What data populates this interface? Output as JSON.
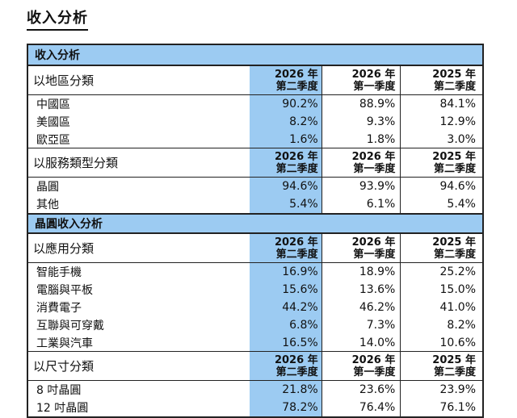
{
  "title": "收入分析",
  "section1": {
    "title": "收入分析",
    "groups": [
      {
        "label": "以地區分類",
        "headers": [
          {
            "year": "2026 年",
            "quarter": "第二季度"
          },
          {
            "year": "2026 年",
            "quarter": "第一季度"
          },
          {
            "year": "2025 年",
            "quarter": "第二季度"
          }
        ],
        "rows": [
          {
            "label": "中國區",
            "v1": "90.2%",
            "v2": "88.9%",
            "v3": "84.1%"
          },
          {
            "label": "美國區",
            "v1": "8.2%",
            "v2": "9.3%",
            "v3": "12.9%"
          },
          {
            "label": "歐亞區",
            "v1": "1.6%",
            "v2": "1.8%",
            "v3": "3.0%"
          }
        ]
      },
      {
        "label": "以服務類型分類",
        "headers": [
          {
            "year": "2026 年",
            "quarter": "第二季度"
          },
          {
            "year": "2026 年",
            "quarter": "第一季度"
          },
          {
            "year": "2025 年",
            "quarter": "第二季度"
          }
        ],
        "rows": [
          {
            "label": "晶圓",
            "v1": "94.6%",
            "v2": "93.9%",
            "v3": "94.6%"
          },
          {
            "label": "其他",
            "v1": "5.4%",
            "v2": "6.1%",
            "v3": "5.4%"
          }
        ]
      }
    ]
  },
  "section2": {
    "title": "晶圓收入分析",
    "groups": [
      {
        "label": "以應用分類",
        "headers": [
          {
            "year": "2026 年",
            "quarter": "第二季度"
          },
          {
            "year": "2026 年",
            "quarter": "第一季度"
          },
          {
            "year": "2025 年",
            "quarter": "第二季度"
          }
        ],
        "rows": [
          {
            "label": "智能手機",
            "v1": "16.9%",
            "v2": "18.9%",
            "v3": "25.2%"
          },
          {
            "label": "電腦與平板",
            "v1": "15.6%",
            "v2": "13.6%",
            "v3": "15.0%"
          },
          {
            "label": "消費電子",
            "v1": "44.2%",
            "v2": "46.2%",
            "v3": "41.0%"
          },
          {
            "label": "互聯與可穿戴",
            "v1": "6.8%",
            "v2": "7.3%",
            "v3": "8.2%"
          },
          {
            "label": "工業與汽車",
            "v1": "16.5%",
            "v2": "14.0%",
            "v3": "10.6%"
          }
        ]
      },
      {
        "label": "以尺寸分類",
        "headers": [
          {
            "year": "2026 年",
            "quarter": "第二季度"
          },
          {
            "year": "2026 年",
            "quarter": "第一季度"
          },
          {
            "year": "2025 年",
            "quarter": "第二季度"
          }
        ],
        "rows": [
          {
            "label": "8 吋晶圓",
            "v1": "21.8%",
            "v2": "23.6%",
            "v3": "23.9%"
          },
          {
            "label": "12 吋晶圓",
            "v1": "78.2%",
            "v2": "76.4%",
            "v3": "76.1%"
          }
        ]
      }
    ]
  },
  "colors": {
    "accent": "#9ccbf2",
    "border": "#222222"
  }
}
